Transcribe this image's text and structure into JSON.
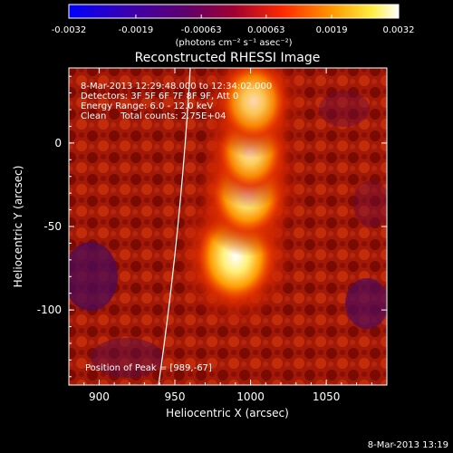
{
  "chart_data": {
    "type": "heatmap",
    "title": "Reconstructed RHESSI Image",
    "xlabel": "Heliocentric X (arcsec)",
    "ylabel": "Heliocentric Y (arcsec)",
    "xlim": [
      880,
      1090
    ],
    "ylim": [
      -145,
      45
    ],
    "x_ticks": [
      900,
      950,
      1000,
      1050
    ],
    "y_ticks": [
      0,
      -50,
      -100
    ],
    "colorbar": {
      "ticks": [
        "-0.0032",
        "-0.0019",
        "-0.00063",
        "0.00063",
        "0.0019",
        "0.0032"
      ],
      "range": [
        -0.0032,
        0.0032
      ],
      "units_label": "(photons cm⁻² s⁻¹ asec⁻²)"
    },
    "annotations": [
      "8-Mar-2013 12:29:48.000 to 12:34:02.000",
      "Detectors: 3F 5F 6F 7F 8F 9F, Att 0",
      "Energy Range: 6.0 - 12.0 keV",
      "Clean     Total counts: 2.75E+04",
      "Position of Peak = [989,-67]"
    ],
    "timestamp": "8-Mar-2013 13:19",
    "peak": {
      "x": 989,
      "y": -67
    },
    "sources": [
      {
        "x": 990,
        "y": -68,
        "r": 11,
        "a": 1.0
      },
      {
        "x": 998,
        "y": -30,
        "r": 10,
        "a": 0.9
      },
      {
        "x": 1000,
        "y": -5,
        "r": 9,
        "a": 0.75
      },
      {
        "x": 1002,
        "y": 25,
        "r": 9,
        "a": 0.7
      }
    ]
  }
}
